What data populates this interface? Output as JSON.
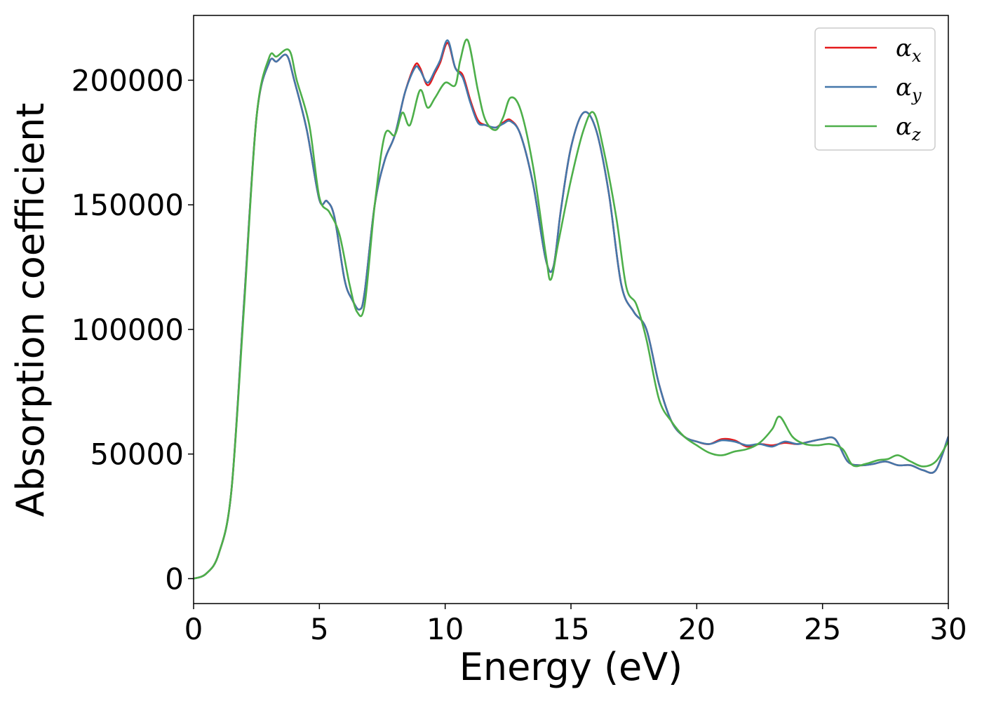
{
  "chart_data": {
    "type": "line",
    "xlabel": "Energy (eV)",
    "ylabel": "Absorption coefficient",
    "xlim": [
      0,
      30
    ],
    "ylim": [
      -10000,
      226000
    ],
    "xticks": [
      0,
      5,
      10,
      15,
      20,
      25,
      30
    ],
    "yticks": [
      0,
      50000,
      100000,
      150000,
      200000
    ],
    "xtick_labels": [
      "0",
      "5",
      "10",
      "15",
      "20",
      "25",
      "30"
    ],
    "ytick_labels": [
      "0",
      "50000",
      "100000",
      "150000",
      "200000"
    ],
    "grid": false,
    "legend": "top-right",
    "series": [
      {
        "name": "α_x",
        "label_main": "α",
        "label_sub": "x",
        "color": "#e41a1c",
        "x": [
          0,
          0.5,
          1.0,
          1.5,
          2.0,
          2.5,
          3.0,
          3.3,
          3.7,
          4.0,
          4.5,
          5.0,
          5.3,
          5.6,
          6.0,
          6.3,
          6.6,
          6.8,
          7.2,
          7.6,
          8.0,
          8.4,
          8.8,
          9.0,
          9.3,
          9.6,
          9.8,
          10.1,
          10.4,
          10.7,
          11.0,
          11.3,
          11.6,
          12.0,
          12.3,
          12.6,
          13.0,
          13.5,
          14.0,
          14.3,
          14.6,
          15.0,
          15.5,
          16.0,
          16.5,
          17.0,
          17.5,
          18.0,
          18.5,
          19.0,
          19.5,
          20.0,
          20.5,
          21.0,
          21.5,
          22.0,
          22.5,
          23.0,
          23.5,
          24.0,
          24.5,
          25.0,
          25.5,
          26.0,
          26.5,
          27.0,
          27.5,
          28.0,
          28.5,
          29.0,
          29.5,
          30.0
        ],
        "y": [
          0,
          2000,
          10000,
          35000,
          110000,
          185000,
          207000,
          207500,
          210000,
          200000,
          180000,
          152000,
          151500,
          145000,
          120000,
          112000,
          108000,
          115000,
          150000,
          168000,
          178000,
          195000,
          206000,
          205000,
          198000,
          203000,
          207000,
          215000,
          205000,
          202000,
          192000,
          184000,
          182000,
          181000,
          183000,
          184000,
          178000,
          158000,
          128000,
          125000,
          148000,
          173000,
          187000,
          180000,
          155000,
          118000,
          107000,
          100000,
          78000,
          63000,
          57000,
          55000,
          54000,
          56000,
          55500,
          53000,
          54000,
          53500,
          54500,
          54000,
          55000,
          56000,
          56000,
          47000,
          45500,
          46000,
          47000,
          45500,
          45500,
          43500,
          43500,
          57000
        ]
      },
      {
        "name": "α_y",
        "label_main": "α",
        "label_sub": "y",
        "color": "#4477aa",
        "x": [
          0,
          0.5,
          1.0,
          1.5,
          2.0,
          2.5,
          3.0,
          3.3,
          3.7,
          4.0,
          4.5,
          5.0,
          5.3,
          5.6,
          6.0,
          6.3,
          6.6,
          6.8,
          7.2,
          7.6,
          8.0,
          8.4,
          8.8,
          9.0,
          9.3,
          9.6,
          9.8,
          10.1,
          10.4,
          10.7,
          11.0,
          11.3,
          11.6,
          12.0,
          12.3,
          12.6,
          13.0,
          13.5,
          14.0,
          14.3,
          14.6,
          15.0,
          15.5,
          16.0,
          16.5,
          17.0,
          17.5,
          18.0,
          18.5,
          19.0,
          19.5,
          20.0,
          20.5,
          21.0,
          21.5,
          22.0,
          22.5,
          23.0,
          23.5,
          24.0,
          24.5,
          25.0,
          25.5,
          26.0,
          26.5,
          27.0,
          27.5,
          28.0,
          28.5,
          29.0,
          29.5,
          30.0
        ],
        "y": [
          0,
          2000,
          10000,
          35000,
          110000,
          185000,
          207000,
          207500,
          210000,
          200000,
          180000,
          152000,
          151500,
          145000,
          120000,
          112000,
          108000,
          115000,
          150000,
          168000,
          178000,
          195000,
          205000,
          204000,
          199000,
          204000,
          208000,
          216000,
          205000,
          201000,
          191000,
          183000,
          182000,
          181000,
          182500,
          183500,
          178000,
          158000,
          128000,
          125000,
          148000,
          173000,
          187000,
          180000,
          155000,
          118000,
          107000,
          100000,
          78000,
          63000,
          57000,
          55000,
          54000,
          55500,
          55000,
          53500,
          54000,
          53000,
          55000,
          54000,
          55000,
          56000,
          56000,
          47000,
          45500,
          46000,
          47000,
          45500,
          45500,
          43500,
          43500,
          57000
        ]
      },
      {
        "name": "α_z",
        "label_main": "α",
        "label_sub": "z",
        "color": "#4daf4a",
        "x": [
          0,
          0.5,
          1.0,
          1.5,
          2.0,
          2.5,
          3.0,
          3.3,
          3.8,
          4.1,
          4.6,
          5.0,
          5.4,
          5.8,
          6.2,
          6.5,
          6.8,
          7.2,
          7.6,
          8.0,
          8.3,
          8.6,
          9.0,
          9.3,
          9.6,
          10.0,
          10.4,
          10.6,
          10.9,
          11.3,
          11.6,
          12.0,
          12.3,
          12.6,
          13.0,
          13.5,
          14.0,
          14.2,
          14.5,
          15.0,
          15.5,
          15.9,
          16.3,
          16.8,
          17.2,
          17.6,
          18.0,
          18.5,
          19.0,
          19.5,
          20.0,
          20.5,
          21.0,
          21.5,
          22.0,
          22.5,
          23.0,
          23.3,
          23.8,
          24.3,
          24.8,
          25.3,
          25.8,
          26.2,
          26.7,
          27.2,
          27.6,
          28.0,
          28.5,
          29.0,
          29.5,
          30.0
        ],
        "y": [
          0,
          2000,
          10000,
          35000,
          108000,
          185000,
          209000,
          209500,
          212000,
          200000,
          182000,
          153000,
          147000,
          138000,
          118000,
          107000,
          110000,
          150000,
          178000,
          178000,
          187000,
          182000,
          196000,
          189000,
          193000,
          199000,
          198000,
          208000,
          216000,
          196000,
          184000,
          180000,
          185000,
          193000,
          188000,
          165000,
          130000,
          120000,
          135000,
          160000,
          180000,
          187000,
          172000,
          145000,
          117000,
          110000,
          96000,
          72000,
          63000,
          57000,
          53500,
          50500,
          49500,
          51000,
          52000,
          54500,
          60000,
          65000,
          57000,
          54000,
          53500,
          54000,
          52000,
          45500,
          46000,
          47500,
          48000,
          49500,
          47000,
          45000,
          47000,
          55000
        ]
      }
    ]
  }
}
